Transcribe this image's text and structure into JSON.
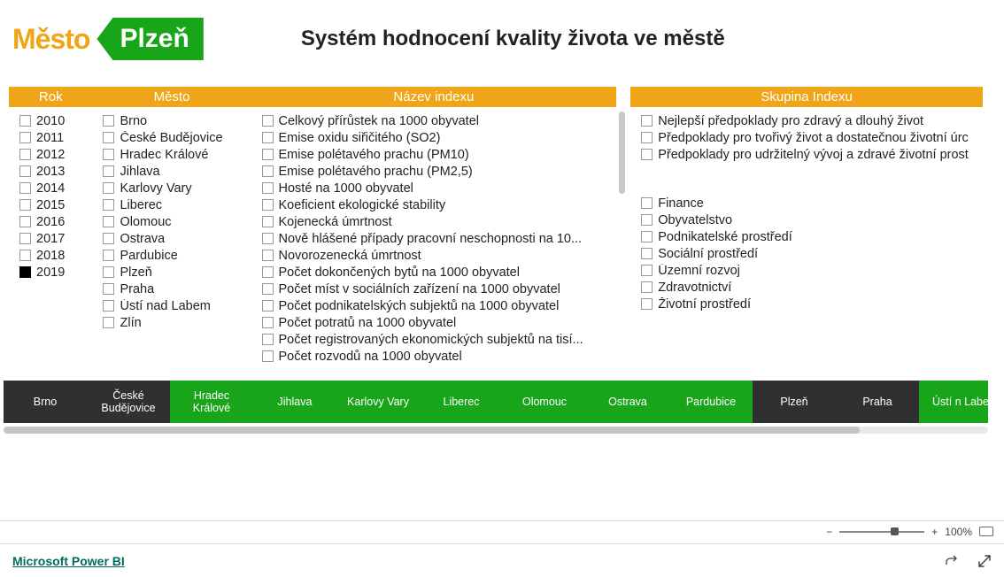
{
  "logo": {
    "mesto_prefix": "M",
    "mesto_e": "ě",
    "mesto_suffix": "sto",
    "city": "Plzeň"
  },
  "title": "Systém hodnocení kvality života ve městě",
  "filters": {
    "rok": {
      "header": "Rok",
      "items": [
        {
          "label": "2010",
          "checked": false
        },
        {
          "label": "2011",
          "checked": false
        },
        {
          "label": "2012",
          "checked": false
        },
        {
          "label": "2013",
          "checked": false
        },
        {
          "label": "2014",
          "checked": false
        },
        {
          "label": "2015",
          "checked": false
        },
        {
          "label": "2016",
          "checked": false
        },
        {
          "label": "2017",
          "checked": false
        },
        {
          "label": "2018",
          "checked": false
        },
        {
          "label": "2019",
          "checked": true
        }
      ]
    },
    "mesto": {
      "header": "Město",
      "items": [
        {
          "label": "Brno",
          "checked": false
        },
        {
          "label": "České Budějovice",
          "checked": false
        },
        {
          "label": "Hradec Králové",
          "checked": false
        },
        {
          "label": "Jihlava",
          "checked": false
        },
        {
          "label": "Karlovy Vary",
          "checked": false
        },
        {
          "label": "Liberec",
          "checked": false
        },
        {
          "label": "Olomouc",
          "checked": false
        },
        {
          "label": "Ostrava",
          "checked": false
        },
        {
          "label": "Pardubice",
          "checked": false
        },
        {
          "label": "Plzeň",
          "checked": false
        },
        {
          "label": "Praha",
          "checked": false
        },
        {
          "label": "Ústí nad Labem",
          "checked": false
        },
        {
          "label": "Zlín",
          "checked": false
        }
      ]
    },
    "nazev": {
      "header": "Název indexu",
      "items": [
        {
          "label": "Celkový přírůstek na 1000 obyvatel",
          "checked": false
        },
        {
          "label": "Emise oxidu siřičitého (SO2)",
          "checked": false
        },
        {
          "label": "Emise polétavého prachu (PM10)",
          "checked": false
        },
        {
          "label": "Emise polétavého prachu (PM2,5)",
          "checked": false
        },
        {
          "label": "Hosté na 1000 obyvatel",
          "checked": false
        },
        {
          "label": "Koeficient ekologické stability",
          "checked": false
        },
        {
          "label": "Kojenecká úmrtnost",
          "checked": false
        },
        {
          "label": "Nově hlášené případy pracovní neschopnosti na 10...",
          "checked": false
        },
        {
          "label": "Novorozenecká úmrtnost",
          "checked": false
        },
        {
          "label": "Počet dokončených bytů na 1000 obyvatel",
          "checked": false
        },
        {
          "label": "Počet míst v sociálních zařízení na 1000 obyvatel",
          "checked": false
        },
        {
          "label": "Počet podnikatelských subjektů na 1000 obyvatel",
          "checked": false
        },
        {
          "label": "Počet potratů na 1000 obyvatel",
          "checked": false
        },
        {
          "label": "Počet registrovaných ekonomických subjektů na tisí...",
          "checked": false
        },
        {
          "label": "Počet rozvodů na 1000 obyvatel",
          "checked": false
        }
      ]
    },
    "skupina": {
      "header": "Skupina Indexu",
      "items": [
        {
          "label": "Nejlepší předpoklady pro zdravý a dlouhý život",
          "checked": false
        },
        {
          "label": "Předpoklady pro tvořivý život a dostatečnou životní úrc",
          "checked": false
        },
        {
          "label": "Předpoklady pro udržitelný vývoj a zdravé životní prost",
          "checked": false
        }
      ]
    },
    "kategorie": {
      "items": [
        {
          "label": "Finance",
          "checked": false
        },
        {
          "label": "Obyvatelstvo",
          "checked": false
        },
        {
          "label": "Podnikatelské prostředí",
          "checked": false
        },
        {
          "label": "Sociální prostředí",
          "checked": false
        },
        {
          "label": "Územní rozvoj",
          "checked": false
        },
        {
          "label": "Zdravotnictví",
          "checked": false
        },
        {
          "label": "Životní prostředí",
          "checked": false
        }
      ]
    }
  },
  "city_tabs": [
    {
      "label": "Brno",
      "color": "black"
    },
    {
      "label": "České Budějovice",
      "color": "black"
    },
    {
      "label": "Hradec Králové",
      "color": "green"
    },
    {
      "label": "Jihlava",
      "color": "green"
    },
    {
      "label": "Karlovy Vary",
      "color": "green"
    },
    {
      "label": "Liberec",
      "color": "green"
    },
    {
      "label": "Olomouc",
      "color": "green"
    },
    {
      "label": "Ostrava",
      "color": "green"
    },
    {
      "label": "Pardubice",
      "color": "green"
    },
    {
      "label": "Plzeň",
      "color": "black"
    },
    {
      "label": "Praha",
      "color": "black"
    },
    {
      "label": "Ústí n Labe",
      "color": "green"
    }
  ],
  "zoom": {
    "minus": "−",
    "plus": "+",
    "level": "100%"
  },
  "footer": {
    "link": "Microsoft Power BI"
  }
}
